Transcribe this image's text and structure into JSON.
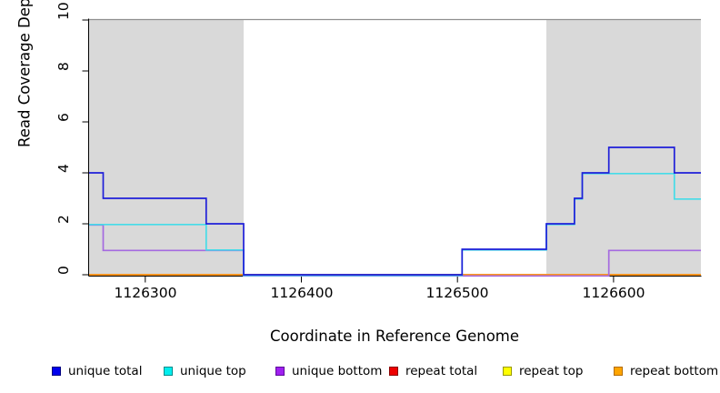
{
  "chart_data": {
    "type": "line",
    "subtype": "step-after coverage plot",
    "title": "",
    "xlabel": "Coordinate in Reference Genome",
    "ylabel": "Read Coverage Depth",
    "xlim": [
      1126264,
      1126656
    ],
    "ylim": [
      0,
      10
    ],
    "grid": false,
    "legend_position": "bottom",
    "x_ticks": [
      1126300,
      1126400,
      1126500,
      1126600
    ],
    "x_tick_labels": [
      "1126300",
      "1126400",
      "1126500",
      "1126600"
    ],
    "y_ticks": [
      0,
      2,
      4,
      6,
      8,
      10
    ],
    "y_tick_labels": [
      "0",
      "2",
      "4",
      "6",
      "8",
      "10"
    ],
    "max_depth_line": {
      "value": 10,
      "color": "#8f8f8f"
    },
    "shaded_color": "#d9d9d9",
    "shaded_regions": [
      {
        "from": 1126264,
        "to": 1126363
      },
      {
        "from": 1126557,
        "to": 1126656
      }
    ],
    "series": [
      {
        "name": "unique total",
        "line_color": "#1f1fd9",
        "legend_color": "#0000ee",
        "legend_border": "#000080",
        "points": [
          [
            1126264,
            4
          ],
          [
            1126273,
            3
          ],
          [
            1126339,
            2
          ],
          [
            1126363,
            0
          ],
          [
            1126503,
            1
          ],
          [
            1126557,
            2
          ],
          [
            1126575,
            3
          ],
          [
            1126580,
            4
          ],
          [
            1126597,
            5
          ],
          [
            1126639,
            4
          ],
          [
            1126656,
            4
          ]
        ]
      },
      {
        "name": "unique top",
        "line_color": "#45dce8",
        "legend_color": "#00eeee",
        "legend_border": "#008b8b",
        "points": [
          [
            1126264,
            2
          ],
          [
            1126339,
            1
          ],
          [
            1126363,
            0
          ],
          [
            1126503,
            1
          ],
          [
            1126557,
            2
          ],
          [
            1126575,
            3
          ],
          [
            1126580,
            4
          ],
          [
            1126639,
            3
          ],
          [
            1126656,
            3
          ]
        ]
      },
      {
        "name": "unique bottom",
        "line_color": "#a56ae0",
        "legend_color": "#a020f0",
        "legend_border": "#5c0a99",
        "points": [
          [
            1126264,
            2
          ],
          [
            1126273,
            1
          ],
          [
            1126363,
            0
          ],
          [
            1126597,
            1
          ],
          [
            1126656,
            1
          ]
        ]
      },
      {
        "name": "repeat total",
        "line_color": "#dd2222",
        "legend_color": "#ee0000",
        "legend_border": "#8b0000",
        "points": [
          [
            1126264,
            0
          ],
          [
            1126656,
            0
          ]
        ]
      },
      {
        "name": "repeat top",
        "line_color": "#eded2a",
        "legend_color": "#ffff00",
        "legend_border": "#999900",
        "points": [
          [
            1126264,
            0
          ],
          [
            1126656,
            0
          ]
        ]
      },
      {
        "name": "repeat bottom",
        "line_color": "#ff9d1e",
        "legend_color": "#ffa500",
        "legend_border": "#b36b00",
        "points": [
          [
            1126264,
            0
          ],
          [
            1126656,
            0
          ]
        ]
      }
    ]
  }
}
